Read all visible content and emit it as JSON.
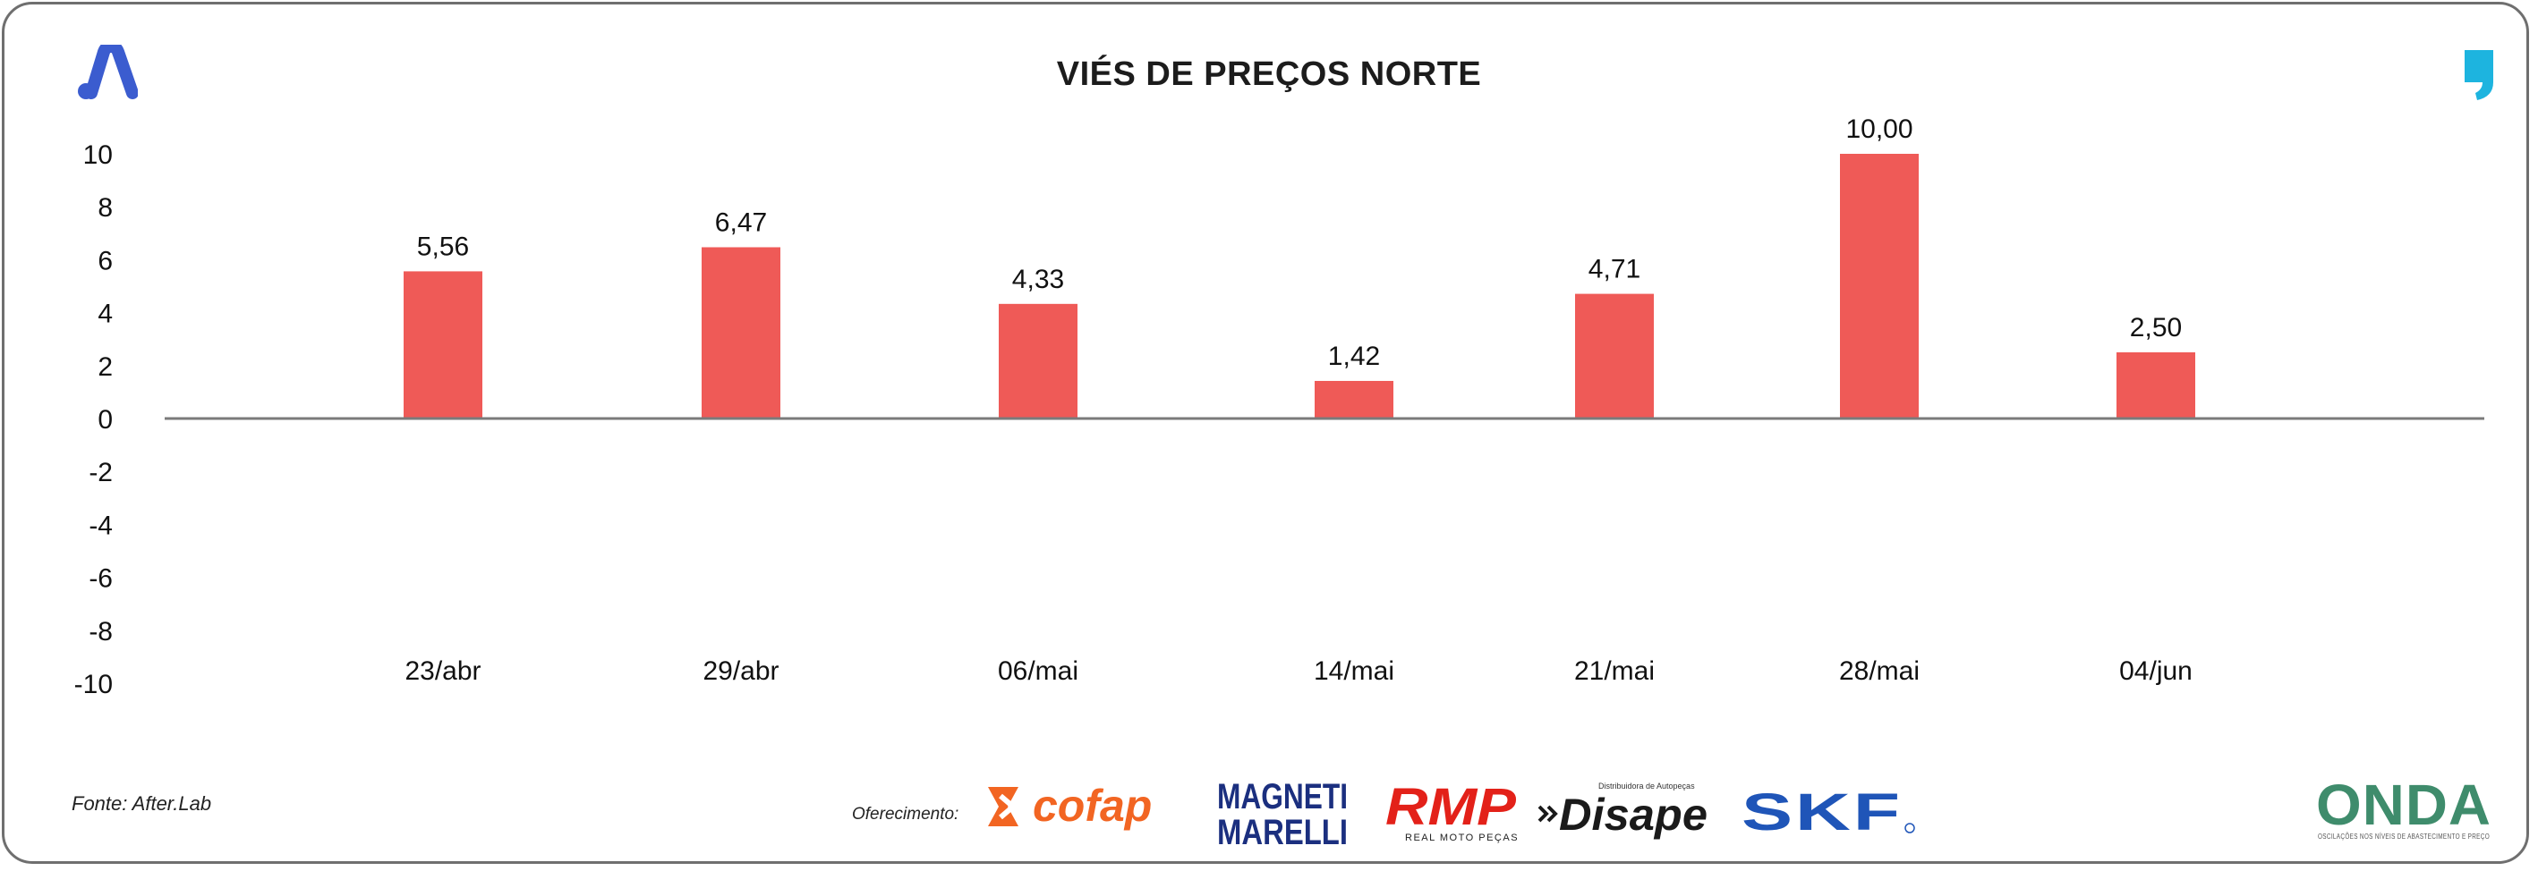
{
  "header": {
    "title": "VIÉS DE PREÇOS NORTE",
    "left_logo_icon": "a-logo-icon",
    "right_logo_icon": "comma-logo-icon"
  },
  "colors": {
    "bar": "#ef5a57",
    "axis": "#7b7b7b",
    "frame": "#6f6f6f",
    "accent_blue": "#3b5ccf",
    "accent_cyan": "#1db4df"
  },
  "footer": {
    "source": "Fonte: After.Lab",
    "sponsor_label": "Oferecimento:",
    "sponsors": {
      "cofap": "cofap",
      "magneti_1": "MAGNETI",
      "magneti_2": "MARELLI",
      "rmp": "RMP",
      "rmp_sub": "REAL MOTO PEÇAS",
      "disape": "Disape",
      "disape_sub": "Distribuidora de Autopeças",
      "skf": "SKF",
      "onda": "ONDA",
      "onda_sub": "OSCILAÇÕES NOS NÍVEIS DE ABASTECIMENTO E PREÇO"
    }
  },
  "chart_data": {
    "type": "bar",
    "title": "VIÉS DE PREÇOS NORTE",
    "categories": [
      "23/abr",
      "29/abr",
      "06/mai",
      "14/mai",
      "21/mai",
      "28/mai",
      "04/jun"
    ],
    "values": [
      5.56,
      6.47,
      4.33,
      1.42,
      4.71,
      10.0,
      2.5
    ],
    "data_labels": [
      "5,56",
      "6,47",
      "4,33",
      "1,42",
      "4,71",
      "10,00",
      "2,50"
    ],
    "ylim": [
      -10,
      10
    ],
    "yticks": [
      10,
      8,
      6,
      4,
      2,
      0,
      -2,
      -4,
      -6,
      -8,
      -10
    ],
    "xlabel": "",
    "ylabel": "",
    "grid": false,
    "legend": "none"
  }
}
